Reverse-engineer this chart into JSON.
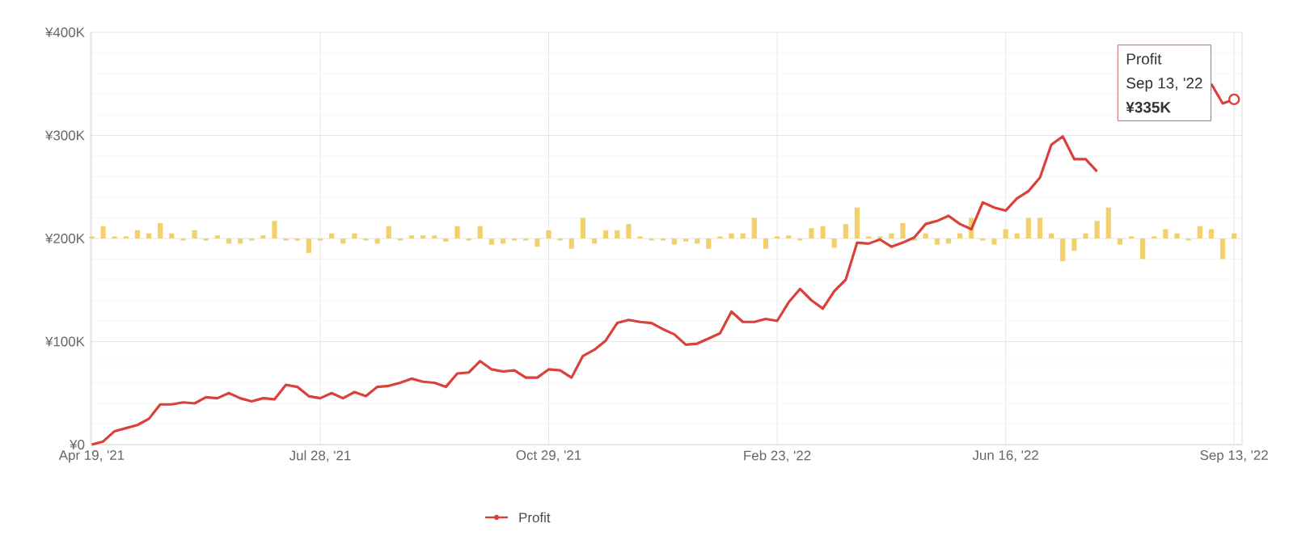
{
  "chart_data": {
    "type": "line",
    "categories": [
      "Apr 19, '21",
      null,
      null,
      null,
      null,
      null,
      null,
      null,
      null,
      null,
      null,
      null,
      null,
      null,
      null,
      null,
      null,
      null,
      null,
      null,
      "Jul 28, '21",
      null,
      null,
      null,
      null,
      null,
      null,
      null,
      null,
      null,
      null,
      null,
      null,
      null,
      null,
      null,
      null,
      null,
      null,
      null,
      "Oct 29, '21",
      null,
      null,
      null,
      null,
      null,
      null,
      null,
      null,
      null,
      null,
      null,
      null,
      null,
      null,
      null,
      null,
      null,
      null,
      null,
      "Feb 23, '22",
      null,
      null,
      null,
      null,
      null,
      null,
      null,
      null,
      null,
      null,
      null,
      null,
      null,
      null,
      null,
      null,
      null,
      null,
      null,
      "Jun 16, '22",
      null,
      null,
      null,
      null,
      null,
      null,
      null,
      null,
      null,
      null,
      null,
      null,
      null,
      null,
      null,
      null,
      null,
      null,
      null,
      "Sep 13, '22"
    ],
    "series": [
      {
        "name": "Profit",
        "color": "#d9413a",
        "values": [
          0,
          3000,
          13000,
          16000,
          19000,
          25000,
          39000,
          39000,
          41000,
          40000,
          46000,
          45000,
          50000,
          45000,
          42000,
          45000,
          44000,
          58000,
          56000,
          47000,
          45000,
          50000,
          45000,
          51000,
          47000,
          56000,
          57000,
          60000,
          64000,
          61000,
          60000,
          56000,
          69000,
          70000,
          81000,
          73000,
          71000,
          72000,
          65000,
          65000,
          73000,
          72000,
          65000,
          86000,
          92000,
          101000,
          118000,
          121000,
          119000,
          118000,
          112000,
          107000,
          97000,
          98000,
          103000,
          108000,
          129000,
          119000,
          119000,
          122000,
          120000,
          138000,
          151000,
          140000,
          132000,
          149000,
          160000,
          196000,
          195000,
          199000,
          192000,
          196000,
          201000,
          214000,
          217000,
          222000,
          214000,
          209000,
          235000,
          230000,
          227000,
          239000,
          246000,
          259000,
          291000,
          299000,
          277000,
          277000,
          265000,
          null,
          null,
          null,
          null,
          null,
          null,
          null,
          null,
          null,
          350000,
          331000,
          335000
        ]
      },
      {
        "type": "bar",
        "color": "#f2d06b",
        "base": [
          200000,
          200000,
          200000,
          200000,
          200000,
          200000,
          200000,
          200000,
          200000,
          200000,
          200000,
          200000,
          200000,
          200000,
          200000,
          200000,
          200000,
          200000,
          200000,
          200000,
          200000,
          200000,
          200000,
          200000,
          200000,
          200000,
          200000,
          200000,
          200000,
          200000,
          200000,
          200000,
          200000,
          200000,
          200000,
          200000,
          200000,
          200000,
          200000,
          200000,
          200000,
          200000,
          200000,
          200000,
          200000,
          200000,
          200000,
          200000,
          200000,
          200000,
          200000,
          200000,
          200000,
          200000,
          200000,
          200000,
          200000,
          200000,
          200000,
          200000,
          200000,
          200000,
          200000,
          200000,
          200000,
          200000,
          200000,
          200000,
          200000,
          200000,
          200000,
          200000,
          200000,
          200000,
          200000,
          200000,
          200000,
          200000,
          200000,
          200000,
          200000,
          200000,
          200000,
          200000,
          200000,
          200000,
          200000,
          200000,
          200000,
          200000,
          200000,
          200000,
          200000,
          200000,
          200000,
          200000,
          200000,
          200000,
          200000,
          200000,
          200000
        ],
        "values": [
          2000,
          12000,
          2000,
          2000,
          8000,
          5000,
          15000,
          5000,
          -2000,
          8000,
          -2000,
          3000,
          -5000,
          -5000,
          -2000,
          3000,
          17000,
          -2000,
          -2000,
          -14000,
          -2000,
          5000,
          -5000,
          5000,
          -2000,
          -5000,
          12000,
          -2000,
          3000,
          3000,
          3000,
          -3000,
          12000,
          -2000,
          12000,
          -6000,
          -5000,
          -2000,
          -2000,
          -8000,
          8000,
          -2000,
          -10000,
          20000,
          -5000,
          8000,
          8000,
          14000,
          2000,
          -2000,
          -2000,
          -6000,
          -3000,
          -5000,
          -10000,
          2000,
          5000,
          5000,
          20000,
          -10000,
          2000,
          3000,
          -2000,
          10000,
          12000,
          -9000,
          14000,
          30000,
          2000,
          2000,
          5000,
          15000,
          -2000,
          5000,
          -6000,
          -5000,
          5000,
          20000,
          -2000,
          -6000,
          9000,
          5000,
          20000,
          20000,
          5000,
          -22000,
          -12000,
          5000,
          17000,
          30000,
          -6000,
          2000,
          -20000,
          2000,
          9000,
          5000,
          -2000,
          12000,
          9000,
          -20000,
          5000
        ]
      }
    ],
    "ylim": [
      0,
      400000
    ],
    "yticks": [
      {
        "value": 0,
        "label": "¥0"
      },
      {
        "value": 100000,
        "label": "¥100K"
      },
      {
        "value": 200000,
        "label": "¥200K"
      },
      {
        "value": 300000,
        "label": "¥300K"
      },
      {
        "value": 400000,
        "label": "¥400K"
      }
    ],
    "grid": true,
    "legend": "bottom",
    "annotations": [
      "Profit",
      "Sep 13, '22",
      "¥335K"
    ]
  }
}
